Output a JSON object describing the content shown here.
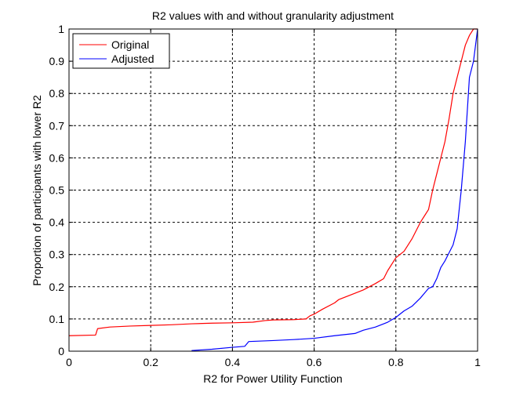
{
  "chart_data": {
    "type": "line",
    "title": "R2 values with and without granularity adjustment",
    "xlabel": "R2 for Power Utility Function",
    "ylabel": "Proportion of participants with lower R2",
    "xlim": [
      0,
      1
    ],
    "ylim": [
      0,
      1
    ],
    "x_ticks": [
      0,
      0.2,
      0.4,
      0.6,
      0.8,
      1
    ],
    "x_tick_labels": [
      "0",
      "0.2",
      "0.4",
      "0.6",
      "0.8",
      "1"
    ],
    "y_ticks": [
      0,
      0.1,
      0.2,
      0.3,
      0.4,
      0.5,
      0.6,
      0.7,
      0.8,
      0.9,
      1
    ],
    "y_tick_labels": [
      "0",
      "0.1",
      "0.2",
      "0.3",
      "0.4",
      "0.5",
      "0.6",
      "0.7",
      "0.8",
      "0.9",
      "1"
    ],
    "grid": true,
    "legend_position": "top-left",
    "series": [
      {
        "name": "Original",
        "color": "#ff0000",
        "x": [
          0,
          0.065,
          0.07,
          0.1,
          0.15,
          0.2,
          0.25,
          0.3,
          0.35,
          0.4,
          0.45,
          0.48,
          0.5,
          0.55,
          0.58,
          0.59,
          0.6,
          0.62,
          0.65,
          0.66,
          0.7,
          0.72,
          0.75,
          0.77,
          0.78,
          0.8,
          0.82,
          0.84,
          0.86,
          0.87,
          0.88,
          0.89,
          0.9,
          0.91,
          0.92,
          0.93,
          0.94,
          0.95,
          0.96,
          0.97,
          0.98,
          0.99,
          1.0
        ],
        "y": [
          0.048,
          0.05,
          0.07,
          0.075,
          0.078,
          0.08,
          0.082,
          0.085,
          0.087,
          0.088,
          0.09,
          0.095,
          0.097,
          0.098,
          0.1,
          0.11,
          0.115,
          0.13,
          0.15,
          0.16,
          0.18,
          0.19,
          0.21,
          0.225,
          0.25,
          0.29,
          0.31,
          0.35,
          0.4,
          0.42,
          0.44,
          0.5,
          0.55,
          0.6,
          0.65,
          0.72,
          0.8,
          0.85,
          0.9,
          0.95,
          0.98,
          1.0,
          1.0
        ]
      },
      {
        "name": "Adjusted",
        "color": "#0000ff",
        "x": [
          0.3,
          0.35,
          0.4,
          0.43,
          0.44,
          0.5,
          0.55,
          0.6,
          0.65,
          0.7,
          0.72,
          0.75,
          0.78,
          0.8,
          0.82,
          0.84,
          0.86,
          0.87,
          0.88,
          0.89,
          0.9,
          0.91,
          0.92,
          0.93,
          0.94,
          0.95,
          0.96,
          0.97,
          0.98,
          0.99,
          1.0
        ],
        "y": [
          0.002,
          0.006,
          0.012,
          0.015,
          0.03,
          0.033,
          0.036,
          0.04,
          0.048,
          0.055,
          0.065,
          0.075,
          0.09,
          0.105,
          0.125,
          0.14,
          0.165,
          0.18,
          0.195,
          0.2,
          0.225,
          0.26,
          0.28,
          0.305,
          0.33,
          0.38,
          0.5,
          0.65,
          0.85,
          0.9,
          1.0
        ]
      }
    ]
  }
}
